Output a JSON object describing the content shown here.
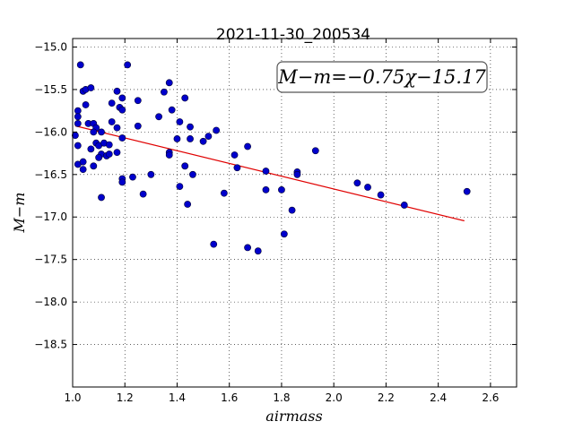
{
  "chart_data": {
    "type": "scatter",
    "title": "2021-11-30_200534",
    "xlabel": "airmass",
    "ylabel": "M−m",
    "xlim": [
      1.0,
      2.7
    ],
    "ylim": [
      -19.0,
      -14.9
    ],
    "x_ticks": [
      1.0,
      1.2,
      1.4,
      1.6,
      1.8,
      2.0,
      2.2,
      2.4,
      2.6
    ],
    "x_tick_labels": [
      "1.0",
      "1.2",
      "1.4",
      "1.6",
      "1.8",
      "2.0",
      "2.2",
      "2.4",
      "2.6"
    ],
    "y_ticks": [
      -15.0,
      -15.5,
      -16.0,
      -16.5,
      -17.0,
      -17.5,
      -18.0,
      -18.5
    ],
    "y_tick_labels": [
      "−15.0",
      "−15.5",
      "−16.0",
      "−16.5",
      "−17.0",
      "−17.5",
      "−18.0",
      "−18.5"
    ],
    "grid": true,
    "annotation": "M−m=−0.75χ−15.17",
    "fit": {
      "slope": -0.75,
      "intercept": -15.17,
      "x_range": [
        1.01,
        2.5
      ],
      "color": "#e00000"
    },
    "point_color": "#0000cc",
    "points": [
      [
        1.03,
        -15.21
      ],
      [
        1.04,
        -15.52
      ],
      [
        1.05,
        -15.5
      ],
      [
        1.07,
        -15.48
      ],
      [
        1.02,
        -15.75
      ],
      [
        1.05,
        -15.68
      ],
      [
        1.02,
        -15.82
      ],
      [
        1.02,
        -15.9
      ],
      [
        1.06,
        -15.9
      ],
      [
        1.08,
        -15.9
      ],
      [
        1.01,
        -16.04
      ],
      [
        1.09,
        -15.95
      ],
      [
        1.08,
        -16.0
      ],
      [
        1.11,
        -16.0
      ],
      [
        1.02,
        -16.16
      ],
      [
        1.09,
        -16.13
      ],
      [
        1.07,
        -16.2
      ],
      [
        1.1,
        -16.16
      ],
      [
        1.12,
        -16.13
      ],
      [
        1.14,
        -16.15
      ],
      [
        1.11,
        -16.26
      ],
      [
        1.13,
        -16.28
      ],
      [
        1.14,
        -16.26
      ],
      [
        1.1,
        -16.3
      ],
      [
        1.02,
        -16.38
      ],
      [
        1.04,
        -16.35
      ],
      [
        1.04,
        -16.44
      ],
      [
        1.08,
        -16.4
      ],
      [
        1.11,
        -16.77
      ],
      [
        1.17,
        -15.52
      ],
      [
        1.19,
        -15.6
      ],
      [
        1.21,
        -15.21
      ],
      [
        1.15,
        -15.66
      ],
      [
        1.18,
        -15.71
      ],
      [
        1.19,
        -15.74
      ],
      [
        1.15,
        -15.88
      ],
      [
        1.17,
        -15.95
      ],
      [
        1.19,
        -16.07
      ],
      [
        1.17,
        -16.24
      ],
      [
        1.19,
        -16.55
      ],
      [
        1.19,
        -16.59
      ],
      [
        1.23,
        -16.53
      ],
      [
        1.25,
        -15.63
      ],
      [
        1.25,
        -15.93
      ],
      [
        1.27,
        -16.73
      ],
      [
        1.3,
        -16.5
      ],
      [
        1.33,
        -15.82
      ],
      [
        1.35,
        -15.53
      ],
      [
        1.37,
        -15.42
      ],
      [
        1.38,
        -15.74
      ],
      [
        1.37,
        -16.24
      ],
      [
        1.37,
        -16.27
      ],
      [
        1.4,
        -16.08
      ],
      [
        1.41,
        -15.88
      ],
      [
        1.43,
        -15.6
      ],
      [
        1.45,
        -15.94
      ],
      [
        1.45,
        -16.08
      ],
      [
        1.43,
        -16.4
      ],
      [
        1.41,
        -16.64
      ],
      [
        1.46,
        -16.5
      ],
      [
        1.44,
        -16.85
      ],
      [
        1.5,
        -16.11
      ],
      [
        1.52,
        -16.05
      ],
      [
        1.55,
        -15.98
      ],
      [
        1.58,
        -16.72
      ],
      [
        1.54,
        -17.32
      ],
      [
        1.62,
        -16.27
      ],
      [
        1.63,
        -16.42
      ],
      [
        1.67,
        -16.17
      ],
      [
        1.67,
        -17.36
      ],
      [
        1.71,
        -17.4
      ],
      [
        1.74,
        -16.46
      ],
      [
        1.74,
        -16.68
      ],
      [
        1.8,
        -16.68
      ],
      [
        1.81,
        -17.2
      ],
      [
        1.84,
        -16.92
      ],
      [
        1.86,
        -16.47
      ],
      [
        1.86,
        -16.5
      ],
      [
        1.93,
        -16.22
      ],
      [
        2.09,
        -16.6
      ],
      [
        2.13,
        -16.65
      ],
      [
        2.18,
        -16.74
      ],
      [
        2.27,
        -16.86
      ],
      [
        2.51,
        -16.7
      ]
    ]
  }
}
